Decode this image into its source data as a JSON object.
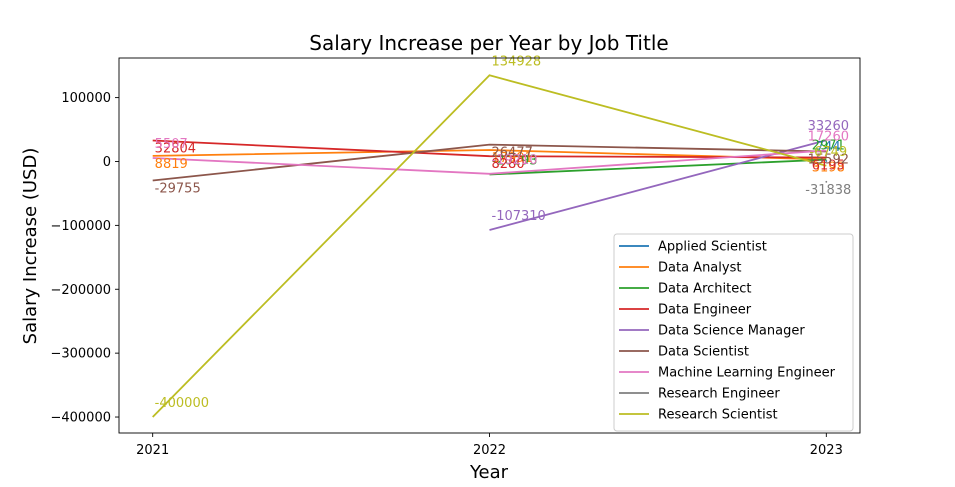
{
  "chart_data": {
    "type": "line",
    "title": "Salary Increase per Year by Job Title",
    "xlabel": "Year",
    "ylabel": "Salary Increase (USD)",
    "x": [
      2021,
      2022,
      2023
    ],
    "x_tick_labels": [
      "2021",
      "2022",
      "2023"
    ],
    "ylim": [
      -425000,
      162000
    ],
    "y_ticks": [
      100000,
      0,
      -100000,
      -200000,
      -300000,
      -400000
    ],
    "y_tick_labels": [
      "100000",
      "0",
      "−100000",
      "−200000",
      "−300000",
      "−400000"
    ],
    "grid": false,
    "legend_position": "lower-right",
    "series": [
      {
        "name": "Applied Scientist",
        "color": "#1f77b4",
        "points": [
          [
            2023,
            744
          ]
        ],
        "labels": [
          {
            "x": 2023,
            "y": 744,
            "text": "744"
          }
        ]
      },
      {
        "name": "Data Analyst",
        "color": "#ff7f0e",
        "points": [
          [
            2021,
            8819
          ],
          [
            2022,
            17991
          ],
          [
            2023,
            3198
          ]
        ],
        "labels": [
          {
            "x": 2021,
            "y": 8819,
            "text": "8819"
          },
          {
            "x": 2022,
            "y": 17991,
            "text": "17991"
          },
          {
            "x": 2023,
            "y": 3198,
            "text": "3198"
          }
        ]
      },
      {
        "name": "Data Architect",
        "color": "#2ca02c",
        "points": [
          [
            2022,
            -20293
          ],
          [
            2023,
            2971
          ]
        ],
        "labels": [
          {
            "x": 2022,
            "y": -20293,
            "text": "-20293"
          },
          {
            "x": 2023,
            "y": 2971,
            "text": "2971"
          }
        ]
      },
      {
        "name": "Data Engineer",
        "color": "#d62728",
        "points": [
          [
            2021,
            32804
          ],
          [
            2022,
            8280
          ],
          [
            2023,
            6195
          ]
        ],
        "labels": [
          {
            "x": 2021,
            "y": 32804,
            "text": "32804"
          },
          {
            "x": 2022,
            "y": 8280,
            "text": "8280"
          },
          {
            "x": 2023,
            "y": 6195,
            "text": "6195"
          }
        ]
      },
      {
        "name": "Data Science Manager",
        "color": "#9467bd",
        "points": [
          [
            2022,
            -107310
          ],
          [
            2023,
            33260
          ]
        ],
        "labels": [
          {
            "x": 2022,
            "y": -107310,
            "text": "-107310"
          },
          {
            "x": 2023,
            "y": 33260,
            "text": "33260"
          }
        ]
      },
      {
        "name": "Data Scientist",
        "color": "#8c564b",
        "points": [
          [
            2021,
            -29755
          ],
          [
            2022,
            26477
          ],
          [
            2023,
            15592
          ]
        ],
        "labels": [
          {
            "x": 2021,
            "y": -29755,
            "text": "-29755"
          },
          {
            "x": 2022,
            "y": 26477,
            "text": "26477"
          },
          {
            "x": 2023,
            "y": 15592,
            "text": "15592"
          }
        ]
      },
      {
        "name": "Machine Learning Engineer",
        "color": "#e377c2",
        "points": [
          [
            2021,
            5507
          ],
          [
            2022,
            -19210
          ],
          [
            2023,
            17260
          ]
        ],
        "labels": [
          {
            "x": 2021,
            "y": 5507,
            "text": "5507"
          },
          {
            "x": 2022,
            "y": -19210,
            "text": "-19210"
          },
          {
            "x": 2023,
            "y": 17260,
            "text": "17260"
          }
        ]
      },
      {
        "name": "Research Engineer",
        "color": "#7f7f7f",
        "points": [
          [
            2023,
            -31838
          ]
        ],
        "labels": [
          {
            "x": 2023,
            "y": -31838,
            "text": "-31838"
          }
        ]
      },
      {
        "name": "Research Scientist",
        "color": "#bcbd22",
        "points": [
          [
            2021,
            -400000
          ],
          [
            2022,
            134928
          ],
          [
            2023,
            -6749
          ]
        ],
        "labels": [
          {
            "x": 2021,
            "y": -400000,
            "text": "-400000"
          },
          {
            "x": 2022,
            "y": 134928,
            "text": "134928"
          },
          {
            "x": 2023,
            "y": -6749,
            "text": "-6749"
          }
        ]
      }
    ]
  }
}
